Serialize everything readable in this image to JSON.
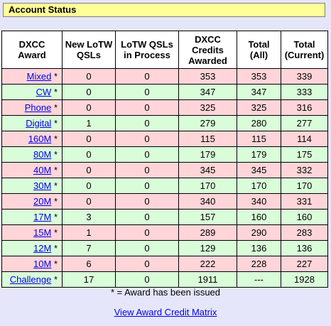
{
  "header": {
    "title": "Account Status"
  },
  "table": {
    "headers": [
      "DXCC Award",
      "New LoTW QSLs",
      "LoTW QSLs in Process",
      "DXCC Credits Awarded",
      "Total (All)",
      "Total (Current)"
    ],
    "rows": [
      {
        "award": "Mixed",
        "star": "*",
        "new": "0",
        "process": "0",
        "credits": "353",
        "total_all": "353",
        "total_current": "339",
        "color": "pink"
      },
      {
        "award": "CW",
        "star": "*",
        "new": "0",
        "process": "0",
        "credits": "347",
        "total_all": "347",
        "total_current": "333",
        "color": "green"
      },
      {
        "award": "Phone",
        "star": "*",
        "new": "0",
        "process": "0",
        "credits": "325",
        "total_all": "325",
        "total_current": "316",
        "color": "pink"
      },
      {
        "award": "Digital",
        "star": "*",
        "new": "1",
        "process": "0",
        "credits": "279",
        "total_all": "280",
        "total_current": "277",
        "color": "green"
      },
      {
        "award": "160M",
        "star": "*",
        "new": "0",
        "process": "0",
        "credits": "115",
        "total_all": "115",
        "total_current": "114",
        "color": "pink"
      },
      {
        "award": "80M",
        "star": "*",
        "new": "0",
        "process": "0",
        "credits": "179",
        "total_all": "179",
        "total_current": "175",
        "color": "green"
      },
      {
        "award": "40M",
        "star": "*",
        "new": "0",
        "process": "0",
        "credits": "345",
        "total_all": "345",
        "total_current": "332",
        "color": "pink"
      },
      {
        "award": "30M",
        "star": "*",
        "new": "0",
        "process": "0",
        "credits": "170",
        "total_all": "170",
        "total_current": "170",
        "color": "green"
      },
      {
        "award": "20M",
        "star": "*",
        "new": "0",
        "process": "0",
        "credits": "340",
        "total_all": "340",
        "total_current": "331",
        "color": "pink"
      },
      {
        "award": "17M",
        "star": "*",
        "new": "3",
        "process": "0",
        "credits": "157",
        "total_all": "160",
        "total_current": "160",
        "color": "green"
      },
      {
        "award": "15M",
        "star": "*",
        "new": "1",
        "process": "0",
        "credits": "289",
        "total_all": "290",
        "total_current": "283",
        "color": "pink"
      },
      {
        "award": "12M",
        "star": "*",
        "new": "7",
        "process": "0",
        "credits": "129",
        "total_all": "136",
        "total_current": "136",
        "color": "green"
      },
      {
        "award": "10M",
        "star": "*",
        "new": "6",
        "process": "0",
        "credits": "222",
        "total_all": "228",
        "total_current": "227",
        "color": "pink"
      },
      {
        "award": "Challenge",
        "star": "*",
        "new": "17",
        "process": "0",
        "credits": "1911",
        "total_all": "---",
        "total_current": "1928",
        "color": "green"
      }
    ]
  },
  "footnote": "* = Award has been issued",
  "matrix_link": "View Award Credit Matrix"
}
